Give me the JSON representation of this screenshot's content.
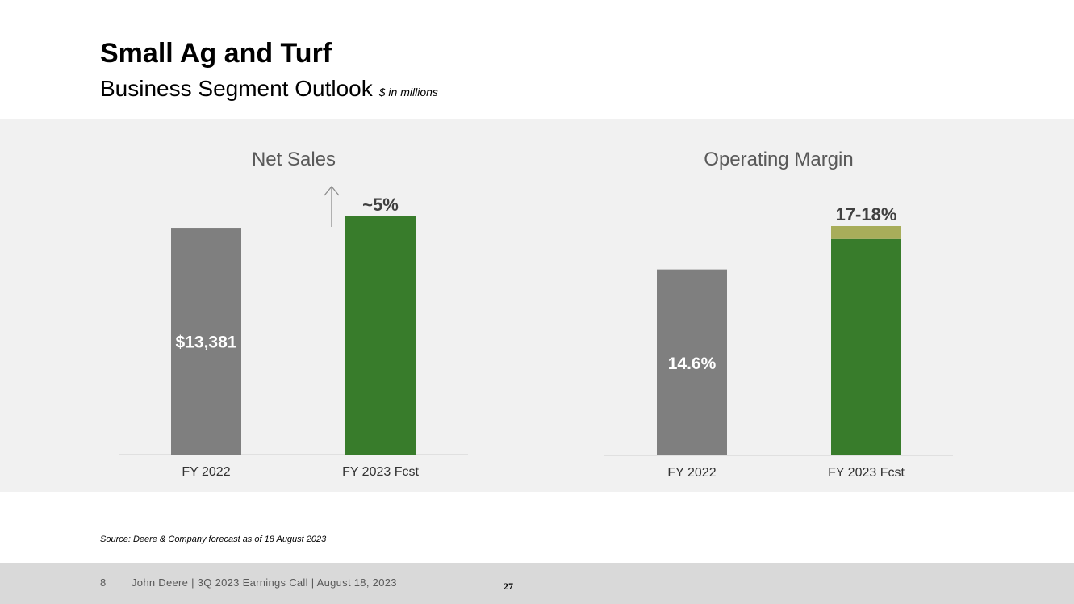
{
  "slide": {
    "title": "Small Ag and Turf",
    "subtitle": "Business Segment Outlook",
    "unit_note": "$ in millions",
    "source": "Source: Deere & Company forecast as of 18 August 2023"
  },
  "footer": {
    "page_number": "8",
    "text": "John Deere | 3Q 2023 Earnings Call | August 18, 2023",
    "slide_number": "27"
  },
  "colors": {
    "gray_bar": "#7f7f7f",
    "green_bar": "#387c2b",
    "range_band": "#a8ad5a",
    "panel_bg": "#f1f1f1",
    "footer_bg": "#d9d9d9"
  },
  "chart_data": [
    {
      "type": "bar",
      "title": "Net Sales",
      "categories": [
        "FY 2022",
        "FY 2023 Fcst"
      ],
      "values": [
        13381,
        14050
      ],
      "data_labels": [
        "$13,381",
        "~5%"
      ],
      "annotation": "up-arrow-icon",
      "ylim": [
        0,
        14050
      ],
      "grid": false,
      "legend": "none"
    },
    {
      "type": "bar",
      "title": "Operating Margin",
      "categories": [
        "FY 2022",
        "FY 2023 Fcst"
      ],
      "values": [
        14.6,
        17
      ],
      "range_top": 18,
      "data_labels": [
        "14.6%",
        "17-18%"
      ],
      "ylim": [
        0,
        18
      ],
      "grid": false,
      "legend": "none"
    }
  ]
}
